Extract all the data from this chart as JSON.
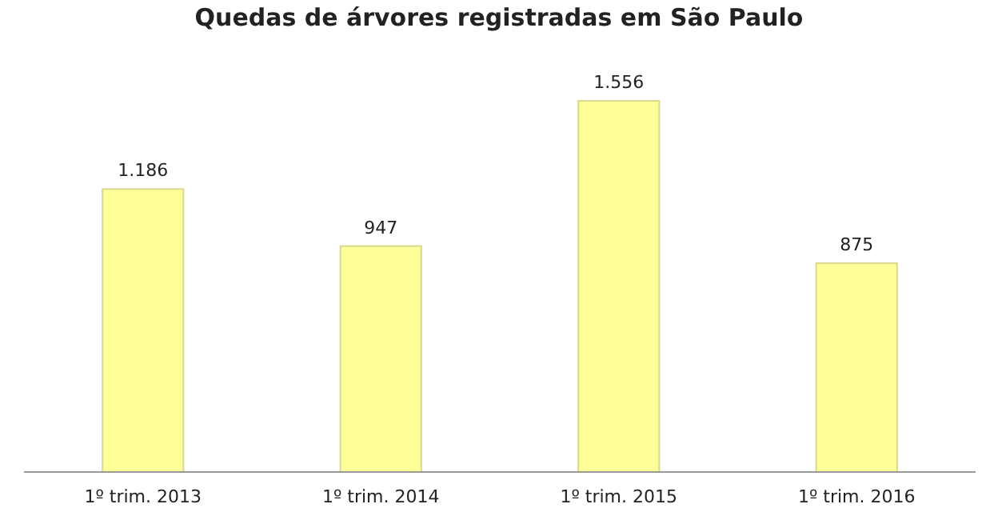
{
  "chart_data": {
    "type": "bar",
    "title": "Quedas de árvores registradas em São Paulo",
    "categories": [
      "1º trim. 2013",
      "1º trim. 2014",
      "1º trim. 2015",
      "1º trim. 2016"
    ],
    "values": [
      1186,
      947,
      1556,
      875
    ],
    "value_labels": [
      "1.186",
      "947",
      "1.556",
      "875"
    ],
    "color": "#ffff99"
  }
}
